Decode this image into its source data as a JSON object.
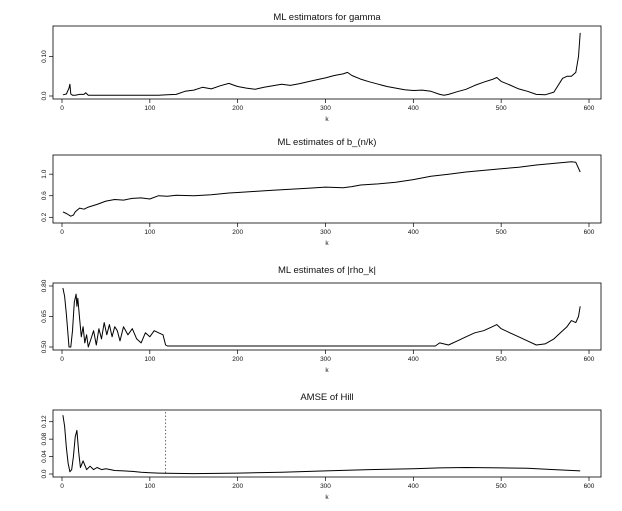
{
  "chart_data": [
    {
      "type": "line",
      "title": "ML  estimators for gamma",
      "xlabel": "k",
      "ylabel": "",
      "xlim": [
        0,
        600
      ],
      "ylim": [
        0.0,
        0.17
      ],
      "xticks": [
        0,
        100,
        200,
        300,
        400,
        500,
        600
      ],
      "yticks": [
        0.0,
        0.1
      ],
      "ytick_labels": [
        "0.0",
        "0.10"
      ],
      "grid": false,
      "series": [
        {
          "x": [
            1,
            5,
            8,
            9,
            10,
            12,
            15,
            20,
            25,
            27,
            30,
            40,
            60,
            80,
            100,
            110,
            120,
            130,
            140,
            150,
            160,
            170,
            180,
            190,
            195,
            200,
            210,
            220,
            230,
            240,
            250,
            260,
            270,
            280,
            290,
            300,
            310,
            320,
            325,
            330,
            340,
            350,
            360,
            370,
            380,
            390,
            400,
            410,
            420,
            430,
            435,
            440,
            450,
            460,
            470,
            480,
            490,
            495,
            500,
            510,
            520,
            530,
            540,
            550,
            560,
            570,
            575,
            580,
            585,
            588,
            590
          ],
          "values": [
            0.003,
            0.005,
            0.02,
            0.03,
            0.005,
            0.002,
            0.002,
            0.004,
            0.004,
            0.008,
            0.002,
            0.002,
            0.002,
            0.002,
            0.002,
            0.002,
            0.003,
            0.004,
            0.012,
            0.015,
            0.022,
            0.018,
            0.026,
            0.032,
            0.028,
            0.024,
            0.02,
            0.017,
            0.022,
            0.026,
            0.03,
            0.027,
            0.031,
            0.036,
            0.041,
            0.046,
            0.052,
            0.056,
            0.06,
            0.052,
            0.043,
            0.036,
            0.03,
            0.024,
            0.02,
            0.016,
            0.014,
            0.015,
            0.012,
            0.004,
            0.002,
            0.004,
            0.011,
            0.017,
            0.027,
            0.035,
            0.042,
            0.047,
            0.037,
            0.028,
            0.018,
            0.012,
            0.004,
            0.003,
            0.01,
            0.045,
            0.05,
            0.05,
            0.06,
            0.1,
            0.16
          ]
        }
      ]
    },
    {
      "type": "line",
      "title": "ML estimates of b_(n/k)",
      "xlabel": "k",
      "ylabel": "",
      "xlim": [
        0,
        600
      ],
      "ylim": [
        0.15,
        1.3
      ],
      "xticks": [
        0,
        100,
        200,
        300,
        400,
        500,
        600
      ],
      "yticks": [
        0.2,
        0.6,
        1.0
      ],
      "ytick_labels": [
        "0.2",
        "0.6",
        "1.0"
      ],
      "grid": false,
      "series": [
        {
          "x": [
            1,
            5,
            10,
            13,
            15,
            20,
            25,
            30,
            40,
            50,
            60,
            70,
            80,
            90,
            100,
            110,
            120,
            130,
            150,
            170,
            190,
            200,
            220,
            240,
            260,
            280,
            300,
            320,
            330,
            340,
            360,
            380,
            400,
            420,
            440,
            460,
            480,
            500,
            520,
            540,
            560,
            580,
            585,
            590
          ],
          "values": [
            0.3,
            0.27,
            0.22,
            0.24,
            0.3,
            0.37,
            0.35,
            0.39,
            0.44,
            0.5,
            0.53,
            0.52,
            0.55,
            0.56,
            0.54,
            0.6,
            0.59,
            0.61,
            0.6,
            0.62,
            0.65,
            0.66,
            0.68,
            0.7,
            0.72,
            0.74,
            0.76,
            0.75,
            0.77,
            0.8,
            0.82,
            0.85,
            0.9,
            0.96,
            1.0,
            1.04,
            1.07,
            1.1,
            1.13,
            1.17,
            1.2,
            1.23,
            1.22,
            1.04
          ]
        }
      ]
    },
    {
      "type": "line",
      "title": "ML estimates of |rho_k|",
      "xlabel": "k",
      "ylabel": "",
      "xlim": [
        0,
        600
      ],
      "ylim": [
        0.5,
        0.8
      ],
      "xticks": [
        0,
        100,
        200,
        300,
        400,
        500,
        600
      ],
      "yticks": [
        0.5,
        0.65,
        0.8
      ],
      "ytick_labels": [
        "0.50",
        "0.65",
        "0.80"
      ],
      "grid": false,
      "series": [
        {
          "x": [
            1,
            3,
            5,
            8,
            10,
            12,
            14,
            16,
            17,
            18,
            20,
            22,
            24,
            26,
            28,
            30,
            33,
            36,
            39,
            42,
            45,
            48,
            51,
            54,
            57,
            60,
            63,
            66,
            70,
            75,
            80,
            85,
            90,
            95,
            100,
            105,
            110,
            115,
            118,
            120,
            200,
            300,
            400,
            425,
            430,
            440,
            450,
            460,
            470,
            480,
            490,
            495,
            500,
            510,
            520,
            530,
            540,
            550,
            560,
            570,
            575,
            580,
            585,
            588,
            590
          ],
          "values": [
            0.79,
            0.75,
            0.66,
            0.5,
            0.5,
            0.58,
            0.72,
            0.76,
            0.7,
            0.74,
            0.64,
            0.55,
            0.6,
            0.52,
            0.56,
            0.5,
            0.54,
            0.58,
            0.51,
            0.59,
            0.54,
            0.62,
            0.56,
            0.61,
            0.55,
            0.6,
            0.58,
            0.53,
            0.6,
            0.56,
            0.59,
            0.54,
            0.52,
            0.57,
            0.55,
            0.58,
            0.57,
            0.56,
            0.51,
            0.505,
            0.505,
            0.505,
            0.505,
            0.505,
            0.52,
            0.51,
            0.53,
            0.55,
            0.57,
            0.58,
            0.6,
            0.61,
            0.59,
            0.57,
            0.55,
            0.53,
            0.51,
            0.515,
            0.54,
            0.58,
            0.6,
            0.63,
            0.62,
            0.65,
            0.7
          ]
        }
      ]
    },
    {
      "type": "line",
      "title": "AMSE of Hill",
      "xlabel": "k",
      "ylabel": "",
      "xlim": [
        0,
        600
      ],
      "ylim": [
        0.0,
        0.14
      ],
      "xticks": [
        0,
        100,
        200,
        300,
        400,
        500,
        600
      ],
      "yticks": [
        0.0,
        0.04,
        0.08,
        0.12
      ],
      "ytick_labels": [
        "0.0",
        "0.04",
        "0.08",
        "0.12"
      ],
      "grid": false,
      "vline_x": 118,
      "series": [
        {
          "x": [
            1,
            3,
            5,
            7,
            9,
            11,
            13,
            15,
            17,
            19,
            21,
            24,
            28,
            32,
            36,
            40,
            45,
            50,
            60,
            70,
            80,
            90,
            100,
            110,
            118,
            150,
            200,
            250,
            300,
            350,
            400,
            430,
            460,
            500,
            530,
            560,
            590
          ],
          "values": [
            0.135,
            0.11,
            0.06,
            0.025,
            0.005,
            0.01,
            0.04,
            0.085,
            0.1,
            0.05,
            0.015,
            0.03,
            0.01,
            0.018,
            0.01,
            0.015,
            0.01,
            0.012,
            0.008,
            0.007,
            0.006,
            0.004,
            0.003,
            0.002,
            0.0015,
            0.001,
            0.002,
            0.004,
            0.007,
            0.01,
            0.012,
            0.014,
            0.015,
            0.014,
            0.013,
            0.01,
            0.007
          ]
        }
      ]
    }
  ]
}
